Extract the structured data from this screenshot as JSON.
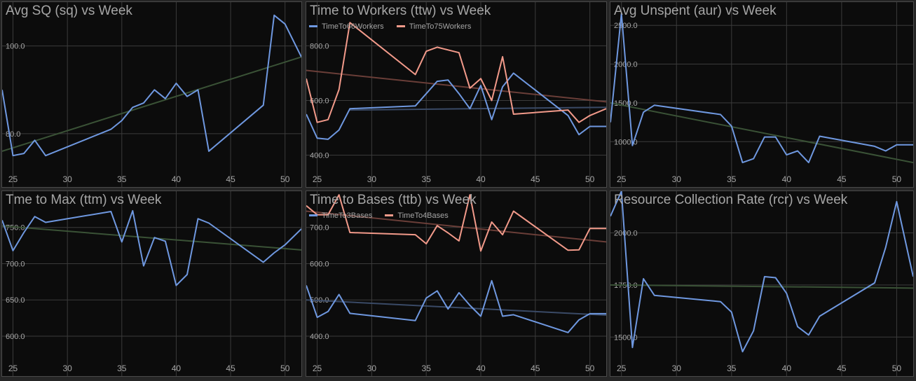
{
  "theme": {
    "background": "#0c0c0c",
    "grid": "#3b3b3b",
    "text": "#a6a6a6",
    "tick_text": "#a6a6a6",
    "blue": "#6f98e0",
    "salmon": "#f29a8a",
    "green_trend": "#3a5236",
    "blue_trend": "#3a4a66",
    "salmon_trend": "#6a3e38"
  },
  "chart_data": [
    {
      "id": "sq",
      "type": "line",
      "title": "Avg SQ (sq) vs Week",
      "xlim": [
        24,
        51.5
      ],
      "ylim": [
        72,
        110
      ],
      "xticks": [
        25,
        30,
        35,
        40,
        45,
        50
      ],
      "yticks": [
        80.0,
        100.0
      ],
      "ytick_labels": [
        "80.0",
        "100.0"
      ],
      "series": [
        {
          "color": "blue",
          "x": [
            24,
            25,
            26,
            27,
            28,
            34,
            35,
            36,
            37,
            38,
            39,
            40,
            41,
            42,
            43,
            48,
            49,
            50,
            51.5
          ],
          "y": [
            90,
            75,
            75.5,
            78.5,
            75,
            81,
            83,
            86,
            87,
            90,
            88,
            91.5,
            88.5,
            90,
            76,
            86.5,
            107,
            105,
            97.5
          ]
        }
      ],
      "trend": [
        {
          "color": "green_trend",
          "x": [
            24,
            51.5
          ],
          "y": [
            76,
            97.5
          ]
        }
      ]
    },
    {
      "id": "ttw",
      "type": "line",
      "title": "Time to Workers (ttw) vs Week",
      "xlim": [
        24,
        51.5
      ],
      "ylim": [
        350,
        960
      ],
      "xticks": [
        25,
        30,
        35,
        40,
        45,
        50
      ],
      "yticks": [
        400.0,
        600.0,
        800.0
      ],
      "ytick_labels": [
        "400.0",
        "600.0",
        "800.0"
      ],
      "legend": [
        {
          "name": "TimeTo66Workers",
          "color": "blue"
        },
        {
          "name": "TimeTo75Workers",
          "color": "salmon"
        }
      ],
      "series": [
        {
          "name": "TimeTo66Workers",
          "color": "blue",
          "x": [
            24,
            25,
            26,
            27,
            28,
            34,
            35,
            36,
            37,
            38,
            39,
            40,
            41,
            42,
            43,
            48,
            49,
            50,
            51.5
          ],
          "y": [
            550,
            462,
            458,
            492,
            570,
            580,
            625,
            670,
            675,
            625,
            570,
            655,
            530,
            650,
            700,
            545,
            475,
            505,
            505
          ]
        },
        {
          "name": "TimeTo75Workers",
          "color": "salmon",
          "x": [
            24,
            25,
            26,
            27,
            28,
            34,
            35,
            36,
            37,
            38,
            39,
            40,
            41,
            42,
            43,
            48,
            49,
            50,
            51.5
          ],
          "y": [
            680,
            520,
            530,
            640,
            885,
            695,
            780,
            795,
            785,
            775,
            645,
            680,
            600,
            760,
            550,
            565,
            520,
            545,
            570
          ]
        }
      ],
      "trend": [
        {
          "color": "blue_trend",
          "x": [
            28,
            51.5
          ],
          "y": [
            565,
            575
          ]
        },
        {
          "color": "salmon_trend",
          "x": [
            24,
            51.5
          ],
          "y": [
            710,
            595
          ]
        }
      ]
    },
    {
      "id": "aur",
      "type": "line",
      "title": "Avg Unspent (aur) vs Week",
      "xlim": [
        24,
        51.5
      ],
      "ylim": [
        650,
        2800
      ],
      "xticks": [
        25,
        30,
        35,
        40,
        45,
        50
      ],
      "yticks": [
        1000.0,
        1500.0,
        2000.0,
        2500.0
      ],
      "ytick_labels": [
        "1000.0",
        "1500.0",
        "2000.0",
        "2500.0"
      ],
      "series": [
        {
          "color": "blue",
          "x": [
            24,
            25,
            26,
            27,
            28,
            34,
            35,
            36,
            37,
            38,
            39,
            40,
            41,
            42,
            43,
            48,
            49,
            50,
            51.5
          ],
          "y": [
            1250,
            2650,
            950,
            1380,
            1470,
            1350,
            1200,
            730,
            780,
            1060,
            1060,
            830,
            880,
            730,
            1070,
            940,
            880,
            960,
            960
          ]
        }
      ],
      "trend": [
        {
          "color": "green_trend",
          "x": [
            24,
            51.5
          ],
          "y": [
            1500,
            730
          ]
        }
      ]
    },
    {
      "id": "ttm",
      "type": "line",
      "title": "Tme to Max (ttm) vs Week",
      "xlim": [
        24,
        51.5
      ],
      "ylim": [
        570,
        800
      ],
      "xticks": [
        25,
        30,
        35,
        40,
        45,
        50
      ],
      "yticks": [
        600.0,
        650.0,
        700.0,
        750.0
      ],
      "ytick_labels": [
        "600.0",
        "650.0",
        "700.0",
        "750.0"
      ],
      "series": [
        {
          "color": "blue",
          "x": [
            24,
            25,
            26,
            27,
            28,
            34,
            35,
            36,
            37,
            38,
            39,
            40,
            41,
            42,
            43,
            48,
            49,
            50,
            51.5
          ],
          "y": [
            760,
            718,
            743,
            765,
            757,
            772,
            730,
            773,
            697,
            736,
            731,
            670,
            685,
            762,
            756,
            702,
            715,
            726,
            748
          ]
        }
      ],
      "trend": [
        {
          "color": "green_trend",
          "x": [
            24,
            51.5
          ],
          "y": [
            752,
            719
          ]
        }
      ]
    },
    {
      "id": "ttb",
      "type": "line",
      "title": "Time to Bases (ttb) vs Week",
      "xlim": [
        24,
        51.5
      ],
      "ylim": [
        340,
        800
      ],
      "xticks": [
        25,
        30,
        35,
        40,
        45,
        50
      ],
      "yticks": [
        400.0,
        500.0,
        600.0,
        700.0
      ],
      "ytick_labels": [
        "400.0",
        "500.0",
        "600.0",
        "700.0"
      ],
      "legend": [
        {
          "name": "TimeTo3Bases",
          "color": "blue"
        },
        {
          "name": "TimeTo4Bases",
          "color": "salmon"
        }
      ],
      "series": [
        {
          "name": "TimeTo3Bases",
          "color": "blue",
          "x": [
            24,
            25,
            26,
            27,
            28,
            34,
            35,
            36,
            37,
            38,
            39,
            40,
            41,
            42,
            43,
            48,
            49,
            50,
            51.5
          ],
          "y": [
            540,
            452,
            468,
            515,
            463,
            443,
            505,
            525,
            475,
            520,
            485,
            455,
            553,
            455,
            459,
            410,
            445,
            462,
            462
          ]
        },
        {
          "name": "TimeTo4Bases",
          "color": "salmon",
          "x": [
            24,
            25,
            26,
            27,
            28,
            34,
            35,
            36,
            37,
            38,
            39,
            40,
            41,
            42,
            43,
            48,
            49,
            50,
            51.5
          ],
          "y": [
            760,
            735,
            735,
            790,
            686,
            680,
            655,
            705,
            685,
            663,
            790,
            635,
            715,
            680,
            745,
            637,
            638,
            697,
            697
          ]
        }
      ],
      "trend": [
        {
          "color": "blue_trend",
          "x": [
            24,
            51.5
          ],
          "y": [
            500,
            458
          ]
        },
        {
          "color": "salmon_trend",
          "x": [
            24,
            51.5
          ],
          "y": [
            745,
            660
          ]
        }
      ]
    },
    {
      "id": "rcr",
      "type": "line",
      "title": "Resource Collection Rate (rcr) vs Week",
      "xlim": [
        24,
        51.5
      ],
      "ylim": [
        1400,
        2200
      ],
      "xticks": [
        25,
        30,
        35,
        40,
        45,
        50
      ],
      "yticks": [
        1500.0,
        1750.0,
        2000.0
      ],
      "ytick_labels": [
        "1500.0",
        "1750.0",
        "2000.0"
      ],
      "series": [
        {
          "color": "blue",
          "x": [
            24,
            25,
            26,
            27,
            28,
            34,
            35,
            36,
            37,
            38,
            39,
            40,
            41,
            42,
            43,
            48,
            49,
            50,
            51.5
          ],
          "y": [
            2080,
            2200,
            1450,
            1780,
            1700,
            1670,
            1620,
            1430,
            1530,
            1790,
            1785,
            1710,
            1550,
            1510,
            1600,
            1760,
            1930,
            2150,
            1790
          ]
        }
      ],
      "trend": [
        {
          "color": "green_trend",
          "x": [
            24,
            51.5
          ],
          "y": [
            1750,
            1735
          ]
        }
      ]
    }
  ]
}
